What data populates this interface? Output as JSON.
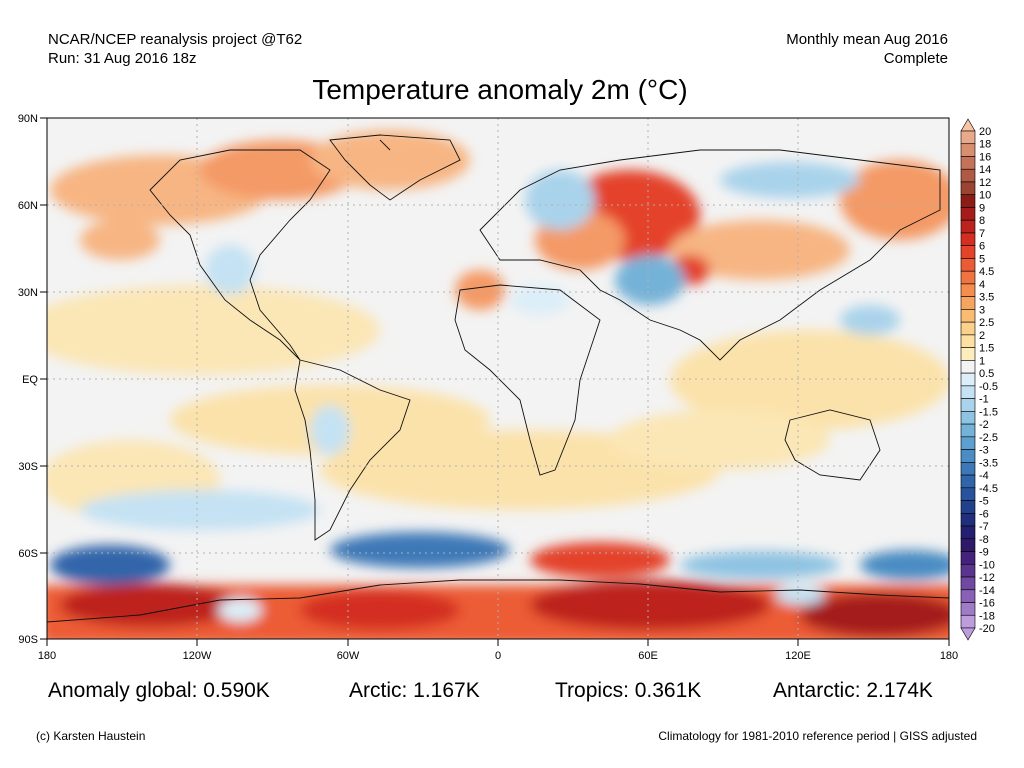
{
  "header": {
    "source_line": "NCAR/NCEP reanalysis project @T62",
    "run_line": "Run: 31 Aug 2016 18z",
    "period_line": "Monthly mean Aug 2016",
    "status_line": "Complete"
  },
  "title": "Temperature anomaly 2m (°C)",
  "axes": {
    "lat_labels": [
      "90N",
      "60N",
      "30N",
      "EQ",
      "30S",
      "60S",
      "90S"
    ],
    "lon_labels": [
      "180",
      "120W",
      "60W",
      "0",
      "60E",
      "120E",
      "180"
    ]
  },
  "colorbar": {
    "levels": [
      "20",
      "18",
      "16",
      "14",
      "12",
      "10",
      "9",
      "8",
      "7",
      "6",
      "5",
      "4.5",
      "4",
      "3.5",
      "3",
      "2.5",
      "2",
      "1.5",
      "1",
      "0.5",
      "-0.5",
      "-1",
      "-1.5",
      "-2",
      "-2.5",
      "-3",
      "-3.5",
      "-4",
      "-4.5",
      "-5",
      "-6",
      "-7",
      "-8",
      "-9",
      "-10",
      "-12",
      "-14",
      "-16",
      "-18",
      "-20"
    ],
    "colors": [
      "#f7c4a4",
      "#e9a98a",
      "#d98e6f",
      "#c57358",
      "#b05a44",
      "#9b4432",
      "#8c1d16",
      "#a51c1a",
      "#bd231e",
      "#d42e22",
      "#e4432a",
      "#ec5b35",
      "#f07441",
      "#f48d4e",
      "#f7a55e",
      "#f9bc72",
      "#fbd08a",
      "#fde0a2",
      "#fdecbc",
      "#f3f3f3",
      "#dceef8",
      "#c4e2f3",
      "#a9d3eb",
      "#8ec3e2",
      "#74b2d8",
      "#5d9fce",
      "#4a8cc3",
      "#3c78b7",
      "#3065aa",
      "#28539c",
      "#22418d",
      "#1f2f7e",
      "#241f70",
      "#2f1a6a",
      "#45237c",
      "#5b348f",
      "#7149a3",
      "#8860b6",
      "#a07bc8",
      "#bd9ddd"
    ]
  },
  "stats": {
    "global": "Anomaly global: 0.590K",
    "arctic": "Arctic: 1.167K",
    "tropics": "Tropics: 0.361K",
    "antarctic": "Antarctic: 2.174K"
  },
  "footer": {
    "credit": "(c) Karsten Haustein",
    "note": "Climatology for 1981-2010 reference period | GISS adjusted"
  }
}
